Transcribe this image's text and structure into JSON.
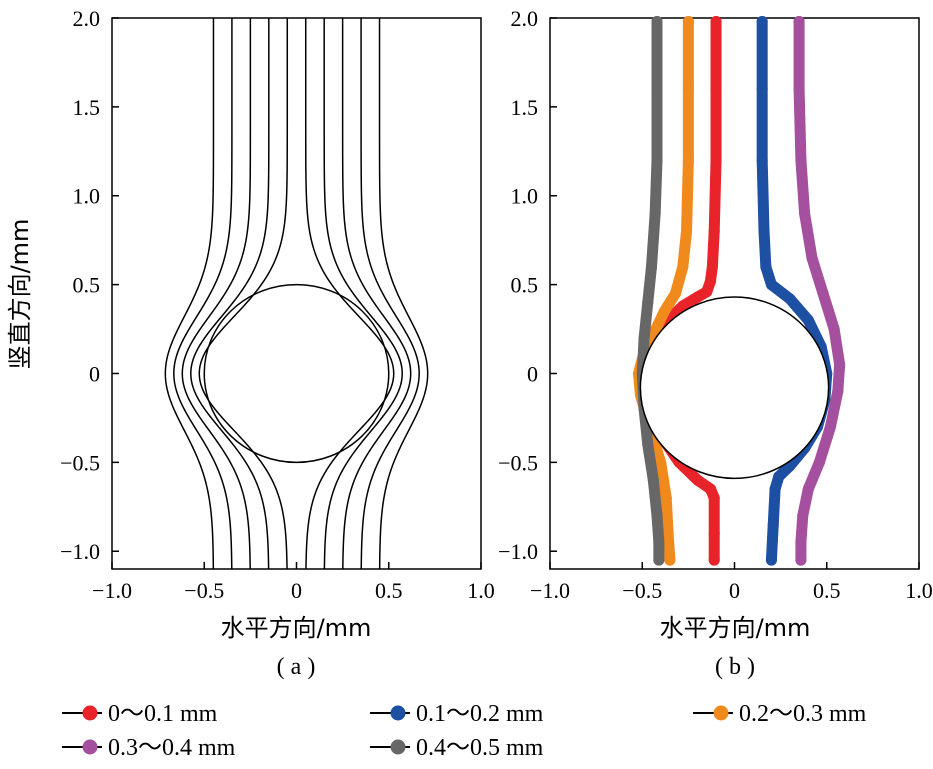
{
  "chart_data": [
    {
      "type": "line",
      "panel_label": "( a )",
      "xlabel": "水平方向/mm",
      "ylabel": "竖直方向/mm",
      "xlim": [
        -1.0,
        1.0
      ],
      "ylim": [
        -1.1,
        2.0
      ],
      "xticks": [
        "−1.0",
        "−0.5",
        "0",
        "0.5",
        "1.0"
      ],
      "yticks": [
        "−1.0",
        "−0.5",
        "0",
        "0.5",
        "1.0",
        "1.5",
        "2.0"
      ],
      "obstacle_circle": {
        "cx": 0,
        "cy": 0,
        "r": 0.5
      },
      "streamline_offsets": [
        -0.45,
        -0.35,
        -0.25,
        -0.15,
        -0.05,
        0.05,
        0.15,
        0.25,
        0.35,
        0.45
      ],
      "color": "#000000"
    },
    {
      "type": "scatter",
      "panel_label": "( b )",
      "xlabel": "水平方向/mm",
      "xlim": [
        -1.0,
        1.0
      ],
      "ylim": [
        -1.1,
        2.0
      ],
      "xticks": [
        "−1.0",
        "−0.5",
        "0",
        "0.5",
        "1.0"
      ],
      "yticks": [
        "−1.0",
        "−0.5",
        "0",
        "0.5",
        "1.0",
        "1.5",
        "2.0"
      ],
      "obstacle_circle": {
        "cx": 0,
        "cy": -0.08,
        "r": 0.51
      },
      "series": [
        {
          "name": "0～0.1 mm",
          "color": "#e8232a",
          "x": [
            -0.1,
            -0.1,
            -0.1,
            -0.11,
            -0.12,
            -0.13,
            -0.15,
            -0.2,
            -0.28,
            -0.38,
            -0.45,
            -0.48,
            -0.47,
            -0.42,
            -0.3,
            -0.2,
            -0.13,
            -0.11,
            -0.11,
            -0.11
          ],
          "y": [
            1.98,
            1.6,
            1.2,
            0.8,
            0.6,
            0.52,
            0.46,
            0.43,
            0.38,
            0.28,
            0.15,
            0.0,
            -0.15,
            -0.32,
            -0.5,
            -0.6,
            -0.65,
            -0.7,
            -0.9,
            -1.05
          ]
        },
        {
          "name": "0.1～0.2 mm",
          "color": "#1d4fa3",
          "x": [
            0.15,
            0.15,
            0.15,
            0.16,
            0.17,
            0.2,
            0.3,
            0.4,
            0.47,
            0.5,
            0.49,
            0.45,
            0.38,
            0.3,
            0.24,
            0.22,
            0.21,
            0.2
          ],
          "y": [
            1.98,
            1.6,
            1.2,
            0.8,
            0.6,
            0.5,
            0.42,
            0.3,
            0.15,
            0.0,
            -0.15,
            -0.3,
            -0.42,
            -0.52,
            -0.58,
            -0.65,
            -0.85,
            -1.05
          ]
        },
        {
          "name": "0.2～0.3 mm",
          "color": "#f08a1c",
          "x": [
            -0.25,
            -0.25,
            -0.25,
            -0.26,
            -0.28,
            -0.32,
            -0.38,
            -0.44,
            -0.5,
            -0.52,
            -0.51,
            -0.46,
            -0.4,
            -0.37,
            -0.36,
            -0.35
          ],
          "y": [
            1.98,
            1.6,
            1.2,
            0.8,
            0.6,
            0.45,
            0.35,
            0.22,
            0.08,
            0.0,
            -0.12,
            -0.3,
            -0.5,
            -0.7,
            -0.9,
            -1.05
          ]
        },
        {
          "name": "0.3～0.4 mm",
          "color": "#a4509f",
          "x": [
            0.35,
            0.35,
            0.36,
            0.38,
            0.42,
            0.48,
            0.54,
            0.57,
            0.56,
            0.52,
            0.46,
            0.4,
            0.37,
            0.36,
            0.36
          ],
          "y": [
            1.98,
            1.6,
            1.2,
            0.9,
            0.65,
            0.45,
            0.25,
            0.05,
            -0.1,
            -0.3,
            -0.5,
            -0.65,
            -0.8,
            -0.95,
            -1.05
          ]
        },
        {
          "name": "0.4～0.5 mm",
          "color": "#676767",
          "x": [
            -0.42,
            -0.42,
            -0.42,
            -0.43,
            -0.45,
            -0.47,
            -0.49,
            -0.5,
            -0.49,
            -0.47,
            -0.44,
            -0.42,
            -0.41,
            -0.41
          ],
          "y": [
            1.98,
            1.6,
            1.2,
            0.9,
            0.6,
            0.4,
            0.2,
            0.0,
            -0.2,
            -0.4,
            -0.6,
            -0.8,
            -0.95,
            -1.05
          ]
        }
      ]
    }
  ],
  "legend": [
    {
      "label": "0～0.1 mm",
      "color": "#e8232a"
    },
    {
      "label": "0.1～0.2 mm",
      "color": "#1d4fa3"
    },
    {
      "label": "0.2～0.3 mm",
      "color": "#f08a1c"
    },
    {
      "label": "0.3～0.4 mm",
      "color": "#a4509f"
    },
    {
      "label": "0.4～0.5 mm",
      "color": "#676767"
    }
  ]
}
